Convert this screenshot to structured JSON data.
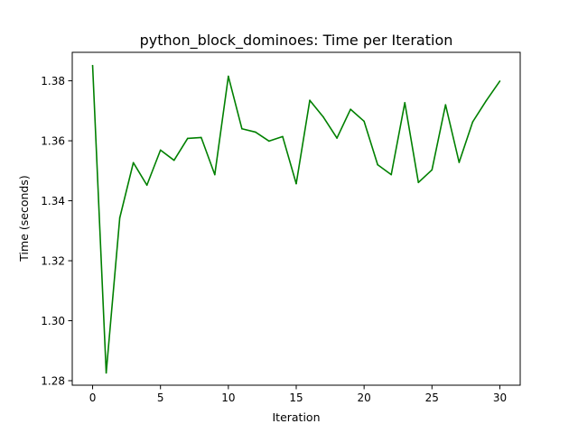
{
  "chart_data": {
    "type": "line",
    "title": "python_block_dominoes: Time per Iteration",
    "xlabel": "Iteration",
    "ylabel": "Time (seconds)",
    "xlim": [
      -1.5,
      31.5
    ],
    "ylim": [
      1.2785,
      1.3895
    ],
    "x_ticks": [
      0,
      5,
      10,
      15,
      20,
      25,
      30
    ],
    "x_tick_labels": [
      "0",
      "5",
      "10",
      "15",
      "20",
      "25",
      "30"
    ],
    "y_ticks": [
      1.28,
      1.3,
      1.32,
      1.34,
      1.36,
      1.38
    ],
    "y_tick_labels": [
      "1.28",
      "1.30",
      "1.32",
      "1.34",
      "1.36",
      "1.38"
    ],
    "grid": false,
    "legend": "none",
    "series": [
      {
        "color": "#008000",
        "x": [
          0,
          1,
          2,
          3,
          4,
          5,
          6,
          7,
          8,
          9,
          10,
          11,
          12,
          13,
          14,
          15,
          16,
          17,
          18,
          19,
          20,
          21,
          22,
          23,
          24,
          25,
          26,
          27,
          28,
          29,
          30
        ],
        "values": [
          1.3851,
          1.2826,
          1.3343,
          1.3527,
          1.3452,
          1.3569,
          1.3535,
          1.3608,
          1.3611,
          1.3487,
          1.3815,
          1.364,
          1.3629,
          1.3599,
          1.3614,
          1.3457,
          1.3735,
          1.3679,
          1.3609,
          1.3705,
          1.3665,
          1.352,
          1.3487,
          1.3727,
          1.3461,
          1.3503,
          1.372,
          1.3528,
          1.3663,
          1.3734,
          1.3799
        ]
      }
    ]
  }
}
